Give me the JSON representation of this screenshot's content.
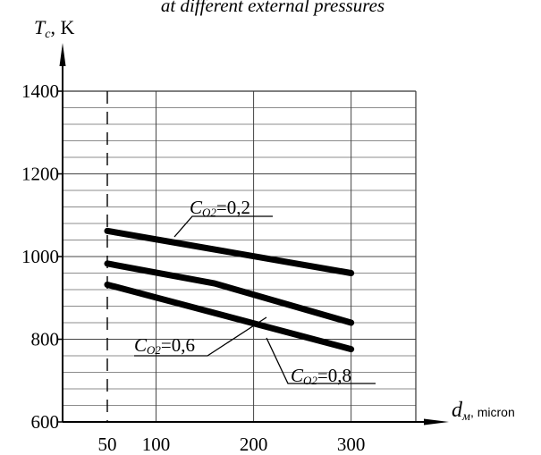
{
  "chart_data": {
    "type": "line",
    "title": "at different external pressures",
    "ylabel": {
      "main": "T",
      "sub": "c",
      "unit": ", K"
    },
    "xlabel": {
      "main": "d",
      "sub": "м",
      "unit": ", micron"
    },
    "ylim": [
      600,
      1400
    ],
    "xlim": [
      50,
      350
    ],
    "y_ticks": [
      600,
      800,
      1000,
      1200,
      1400
    ],
    "x_ticks": [
      50,
      100,
      200,
      300
    ],
    "grid": true,
    "reference_line_x": 50,
    "series": [
      {
        "name": "CO2=0,2",
        "label": {
          "main": "C",
          "sub": "O2",
          "value": "=0,2"
        },
        "x": [
          50,
          300
        ],
        "y": [
          1062,
          960
        ]
      },
      {
        "name": "CO2=0,6",
        "label": {
          "main": "C",
          "sub": "O2",
          "value": "=0,6"
        },
        "x": [
          50,
          160,
          300
        ],
        "y": [
          983,
          935,
          840
        ]
      },
      {
        "name": "CO2=0,8",
        "label": {
          "main": "C",
          "sub": "O2",
          "value": "=0,8"
        },
        "x": [
          50,
          300
        ],
        "y": [
          932,
          776
        ]
      }
    ]
  }
}
